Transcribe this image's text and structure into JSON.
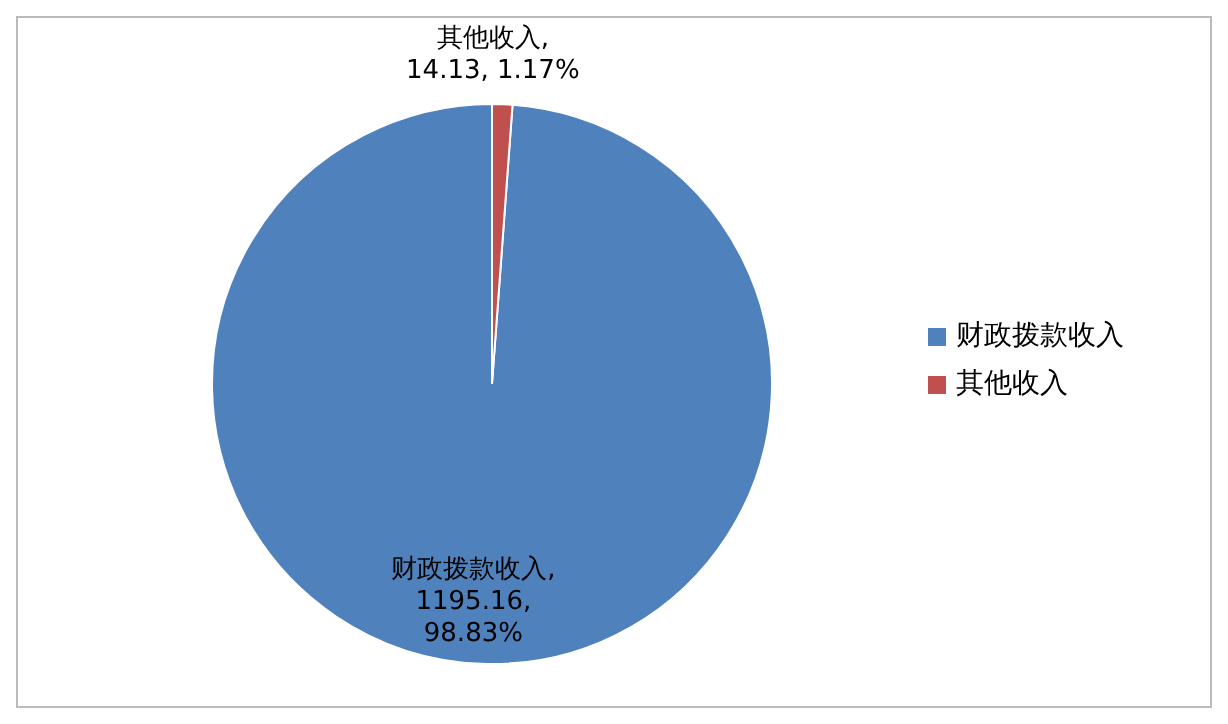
{
  "chart_data": {
    "type": "pie",
    "categories": [
      "财政拨款收入",
      "其他收入"
    ],
    "values": [
      1195.16,
      14.13
    ],
    "colors": [
      "#4f81bd",
      "#c0504d"
    ],
    "value_labels": [
      "财政拨款收入, 1195.16, 98.83%",
      "其他收入, 14.13, 1.17%"
    ],
    "legend": "right"
  }
}
